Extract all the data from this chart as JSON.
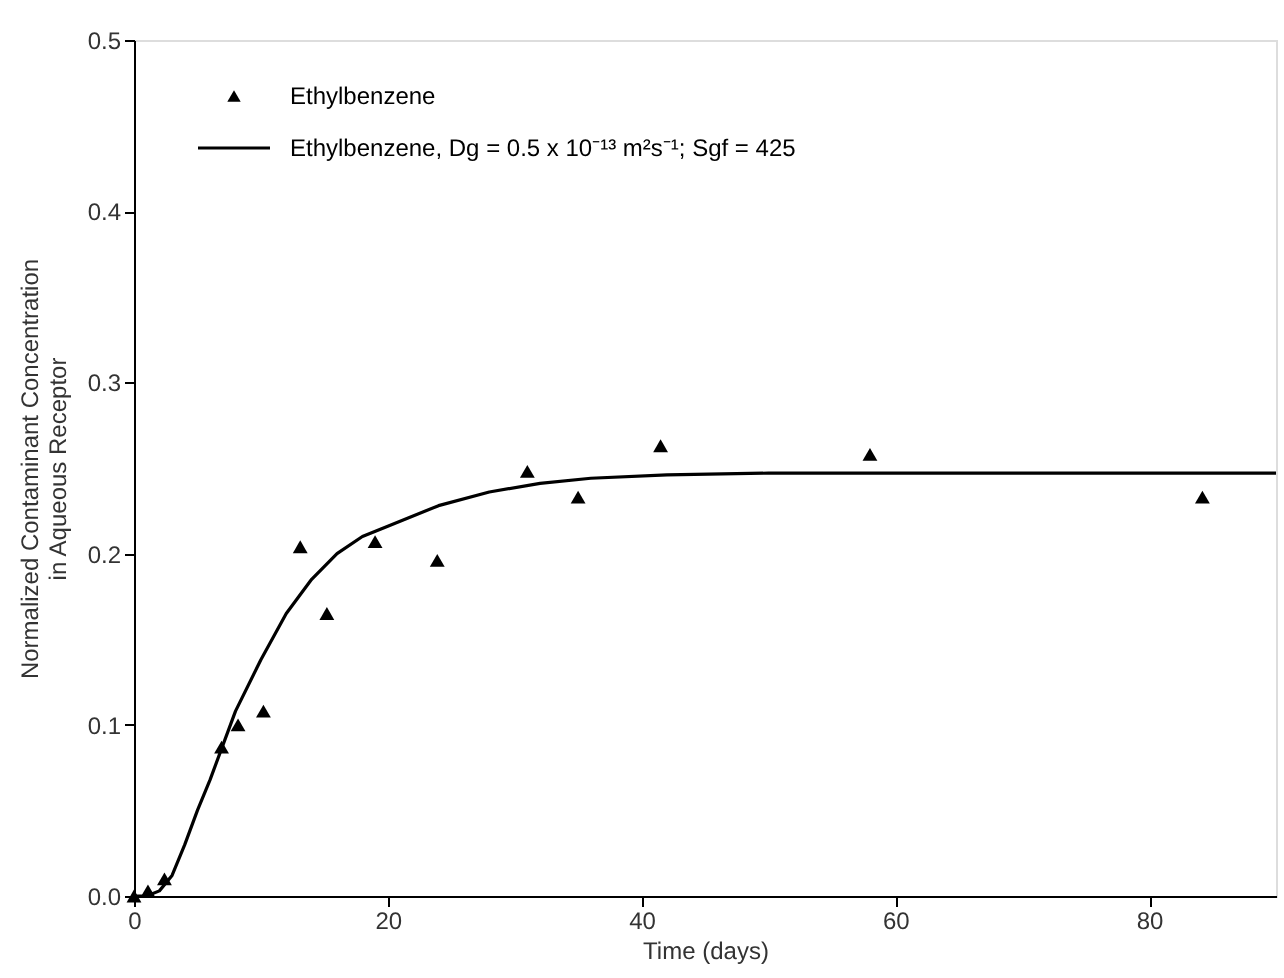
{
  "chart_data": {
    "type": "scatter",
    "xlabel": "Time (days)",
    "ylabel": "Normalized Contaminant Concentration\nin Aqueous Receptor",
    "xlim": [
      0,
      90
    ],
    "xticks": [
      0,
      20,
      40,
      60,
      80
    ],
    "ylim": [
      0,
      0.5
    ],
    "yticks": [
      {
        "value": 0,
        "label": "0.0"
      },
      0.1,
      0.2,
      0.3,
      0.4,
      0.5
    ],
    "grid": false,
    "legend": "top left",
    "series": [
      {
        "name": "Ethylbenzene",
        "type": "scatter",
        "marker": "triangle",
        "color": "#000000",
        "x": [
          0,
          1.1,
          2.4,
          6.9,
          8.2,
          10.2,
          13.1,
          15.2,
          19.0,
          23.9,
          31.0,
          35.0,
          41.5,
          58.0,
          84.2
        ],
        "values": [
          0.0,
          0.003,
          0.01,
          0.087,
          0.1,
          0.108,
          0.204,
          0.165,
          0.207,
          0.196,
          0.248,
          0.233,
          0.263,
          0.258,
          0.233
        ]
      },
      {
        "name": "Ethylbenzene, Dg = 0.5 x 10⁻¹³ m²s⁻¹; Sgf = 425",
        "type": "line",
        "line_style": "solid",
        "marker": "none",
        "color": "#000000",
        "x": [
          0,
          1,
          2,
          3,
          4,
          5,
          6,
          7,
          8,
          10,
          12,
          14,
          16,
          18,
          20,
          24,
          28,
          32,
          36,
          42,
          50,
          70,
          90
        ],
        "values": [
          0,
          0.0,
          0.003,
          0.012,
          0.03,
          0.05,
          0.068,
          0.088,
          0.108,
          0.138,
          0.165,
          0.185,
          0.2,
          0.21,
          0.216,
          0.228,
          0.236,
          0.241,
          0.244,
          0.246,
          0.247,
          0.247,
          0.247
        ]
      }
    ]
  }
}
